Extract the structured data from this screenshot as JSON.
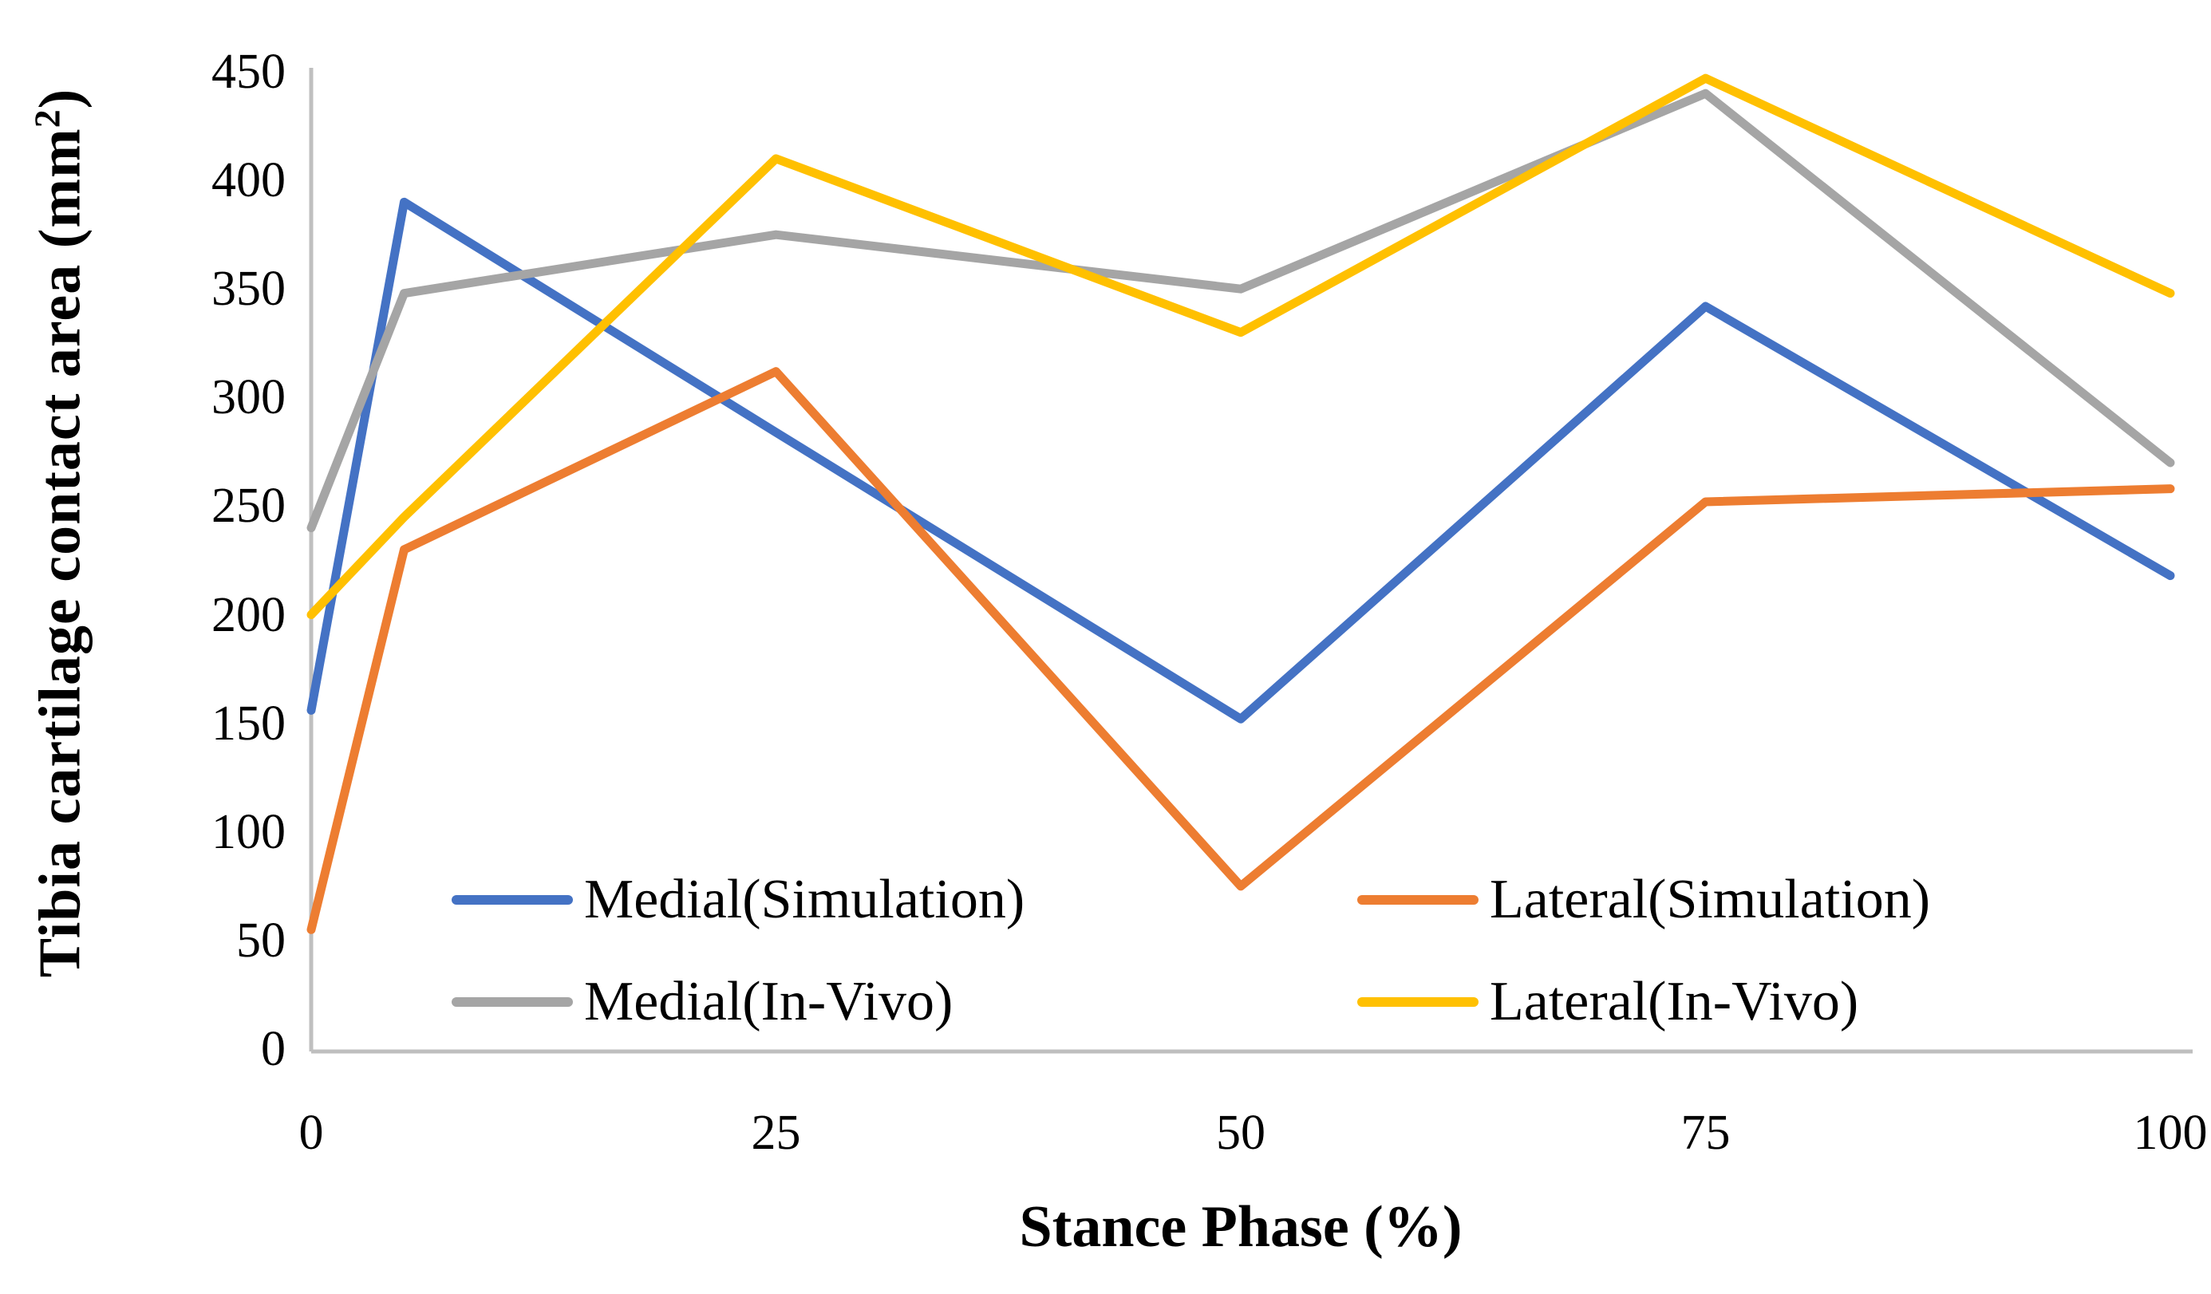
{
  "chart_data": {
    "type": "line",
    "title": "",
    "xlabel": "Stance Phase (%)",
    "ylabel": "Tibia cartilage contact area (mm²)",
    "ylabel_parts": {
      "prefix": "Tibia cartilage contact area (mm",
      "sup": "2",
      "suffix": ")"
    },
    "x": [
      0,
      5,
      25,
      50,
      75,
      100
    ],
    "xlim": [
      0,
      100
    ],
    "ylim": [
      0,
      450
    ],
    "x_ticks": [
      "0",
      "25",
      "50",
      "75",
      "100"
    ],
    "x_tick_values": [
      0,
      25,
      50,
      75,
      100
    ],
    "y_ticks": [
      "0",
      "50",
      "100",
      "150",
      "200",
      "250",
      "300",
      "350",
      "400",
      "450"
    ],
    "y_tick_values": [
      0,
      50,
      100,
      150,
      200,
      250,
      300,
      350,
      400,
      450
    ],
    "grid": false,
    "legend_position": "inside-bottom, 2 columns x 2 rows",
    "axis_color": "#BFBFBF",
    "text_color": "#000000",
    "background": "#FFFFFF",
    "series": [
      {
        "name": "Medial(Simulation)",
        "color": "#4472C4",
        "values": [
          156,
          390,
          284,
          152,
          342,
          218
        ]
      },
      {
        "name": "Lateral(Simulation)",
        "color": "#ED7D31",
        "values": [
          55,
          230,
          312,
          75,
          252,
          258
        ]
      },
      {
        "name": "Medial(In-Vivo)",
        "color": "#A5A5A5",
        "values": [
          240,
          348,
          375,
          350,
          440,
          270
        ]
      },
      {
        "name": "Lateral(In-Vivo)",
        "color": "#FFC000",
        "values": [
          200,
          245,
          410,
          330,
          447,
          348
        ]
      }
    ]
  }
}
